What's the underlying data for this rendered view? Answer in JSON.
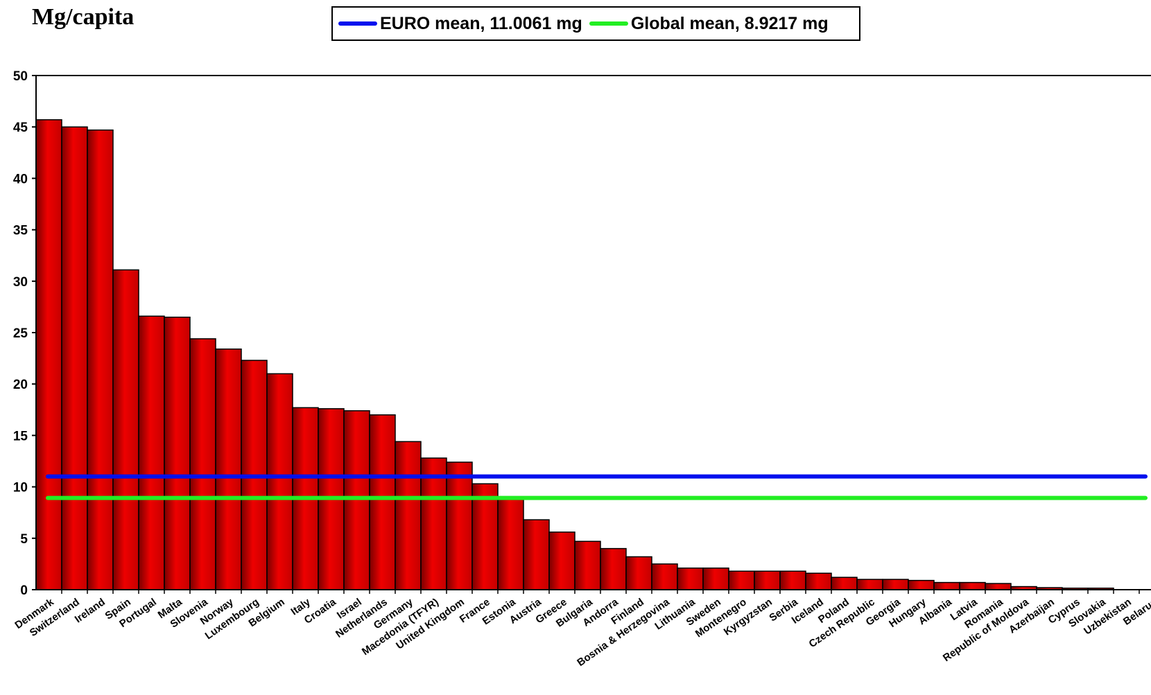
{
  "chart_data": {
    "type": "bar",
    "title": "Mg/capita",
    "xlabel": "",
    "ylabel": "",
    "ylim": [
      0,
      50
    ],
    "yticks": [
      0,
      5,
      10,
      15,
      20,
      25,
      30,
      35,
      40,
      45,
      50
    ],
    "bar_color": "#ee0000",
    "categories": [
      "Denmark",
      "Switzerland",
      "Ireland",
      "Spain",
      "Portugal",
      "Malta",
      "Slovenia",
      "Norway",
      "Luxembourg",
      "Belgium",
      "Italy",
      "Croatia",
      "Israel",
      "Netherlands",
      "Germany",
      "Macedonia (TFYR)",
      "United Kingdom",
      "France",
      "Estonia",
      "Austria",
      "Greece",
      "Bulgaria",
      "Andorra",
      "Finland",
      "Bosnia & Herzegovina",
      "Lithuania",
      "Sweden",
      "Montenegro",
      "Kyrgyzstan",
      "Serbia",
      "Iceland",
      "Poland",
      "Czech Republic",
      "Georgia",
      "Hungary",
      "Albania",
      "Latvia",
      "Romania",
      "Republic of Moldova",
      "Azerbaijan",
      "Cyprus",
      "Slovakia",
      "Uzbekistan",
      "Belarus"
    ],
    "values": [
      45.7,
      45.0,
      44.7,
      31.1,
      26.6,
      26.5,
      24.4,
      23.4,
      22.3,
      21.0,
      17.7,
      17.6,
      17.4,
      17.0,
      14.4,
      12.8,
      12.4,
      10.3,
      8.8,
      6.8,
      5.6,
      4.7,
      4.0,
      3.2,
      2.5,
      2.1,
      2.1,
      1.8,
      1.8,
      1.8,
      1.6,
      1.2,
      1.0,
      1.0,
      0.9,
      0.7,
      0.7,
      0.6,
      0.3,
      0.2,
      0.15,
      0.15,
      0.0,
      0.0
    ],
    "series": [
      {
        "name": "Mg/capita",
        "type": "bar"
      },
      {
        "name": "EURO mean, 11.0061 mg",
        "type": "line",
        "value": 11.0061,
        "color": "#0010ee"
      },
      {
        "name": "Global mean, 8.9217 mg",
        "type": "line",
        "value": 8.9217,
        "color": "#22ee22"
      }
    ],
    "legend": {
      "position": "top-center"
    },
    "grid": false
  }
}
